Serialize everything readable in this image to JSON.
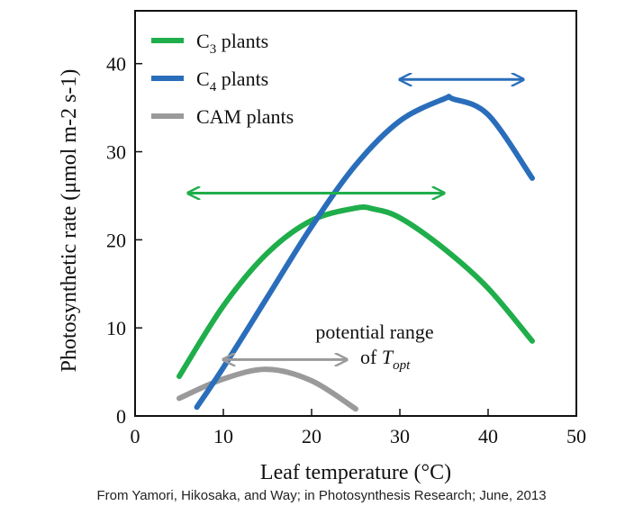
{
  "chart_data": {
    "type": "line",
    "title": "",
    "xlabel": "Leaf temperature (°C)",
    "ylabel": "Photosynthetic rate (μmol m-2 s-1)",
    "xlim": [
      0,
      50
    ],
    "ylim": [
      0,
      46
    ],
    "xticks": [
      0,
      10,
      20,
      30,
      40,
      50
    ],
    "yticks": [
      0,
      10,
      20,
      30,
      40
    ],
    "grid": false,
    "legend_position": "top-left",
    "series": [
      {
        "name": "C3 plants",
        "legend_main": "C",
        "legend_sub": "3",
        "legend_rest": " plants",
        "color": "#1fae4b",
        "x": [
          5,
          10,
          15,
          20,
          25,
          27,
          30,
          35,
          40,
          45
        ],
        "y": [
          4.5,
          12.5,
          18.5,
          22.2,
          23.6,
          23.5,
          22.5,
          19.0,
          14.5,
          8.5
        ]
      },
      {
        "name": "C4 plants",
        "legend_main": "C",
        "legend_sub": "4",
        "legend_rest": " plants",
        "color": "#2a6ebb",
        "x": [
          7,
          10,
          15,
          20,
          25,
          30,
          35,
          36,
          40,
          45
        ],
        "y": [
          1.0,
          5.5,
          13.5,
          21.5,
          28.5,
          33.5,
          36.0,
          36.0,
          34.2,
          27.0
        ]
      },
      {
        "name": "CAM plants",
        "legend_main": "CAM plants",
        "legend_sub": "",
        "legend_rest": "",
        "color": "#9a9a9a",
        "x": [
          5,
          10,
          15,
          20,
          25
        ],
        "y": [
          2.0,
          4.2,
          5.3,
          4.0,
          0.8
        ]
      }
    ],
    "optimal_ranges": [
      {
        "series": "C3 plants",
        "x_start": 6,
        "x_end": 35,
        "y": 25.3,
        "color": "#1fae4b"
      },
      {
        "series": "C4 plants",
        "x_start": 30,
        "x_end": 44,
        "y": 38.2,
        "color": "#2a6ebb"
      },
      {
        "series": "CAM plants",
        "x_start": 10,
        "x_end": 24,
        "y": 6.4,
        "color": "#9a9a9a"
      }
    ],
    "annotation": {
      "line1": "potential range",
      "line2_prefix": "of ",
      "line2_main": "T",
      "line2_sub": "opt"
    }
  },
  "source_text": "From Yamori, Hikosaka, and Way; in Photosynthesis Research; June, 2013"
}
